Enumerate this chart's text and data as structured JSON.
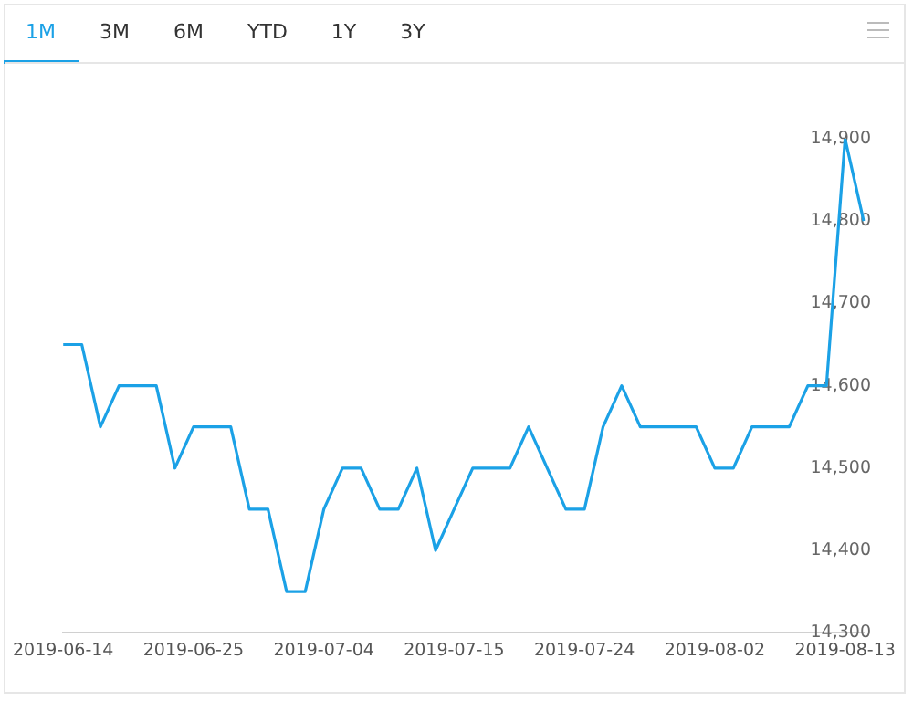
{
  "chart_data": {
    "type": "line",
    "annotations": [
      "1M",
      "3M",
      "6M",
      "YTD",
      "1Y",
      "3Y"
    ],
    "categories": [
      "2019-06-14",
      null,
      null,
      null,
      null,
      null,
      null,
      "2019-06-25",
      null,
      null,
      null,
      null,
      null,
      null,
      "2019-07-04",
      null,
      null,
      null,
      null,
      null,
      null,
      "2019-07-15",
      null,
      null,
      null,
      null,
      null,
      null,
      "2019-07-24",
      null,
      null,
      null,
      null,
      null,
      null,
      "2019-08-02",
      null,
      null,
      null,
      null,
      null,
      null,
      "2019-08-13",
      null
    ],
    "series": [
      {
        "color": "#1ba1e6",
        "values": [
          14650,
          14650,
          14550,
          14600,
          14600,
          14600,
          14500,
          14550,
          14550,
          14550,
          14450,
          14450,
          14350,
          14350,
          14450,
          14500,
          14500,
          14450,
          14450,
          14500,
          14400,
          14450,
          14500,
          14500,
          14500,
          14550,
          14500,
          14450,
          14450,
          14550,
          14600,
          14550,
          14550,
          14550,
          14550,
          14500,
          14500,
          14550,
          14550,
          14550,
          14600,
          14600,
          14900,
          14800
        ]
      }
    ],
    "ylim": [
      14300,
      14900
    ],
    "yticks": [
      {
        "value": 14300,
        "label": "14,300"
      },
      {
        "value": 14400,
        "label": "14,400"
      },
      {
        "value": 14500,
        "label": "14,500"
      },
      {
        "value": 14600,
        "label": "14,600"
      },
      {
        "value": 14700,
        "label": "14,700"
      },
      {
        "value": 14800,
        "label": "14,800"
      },
      {
        "value": 14900,
        "label": "14,900"
      }
    ],
    "grid": false,
    "legend": false,
    "marker": "none",
    "line_style": "solid"
  }
}
